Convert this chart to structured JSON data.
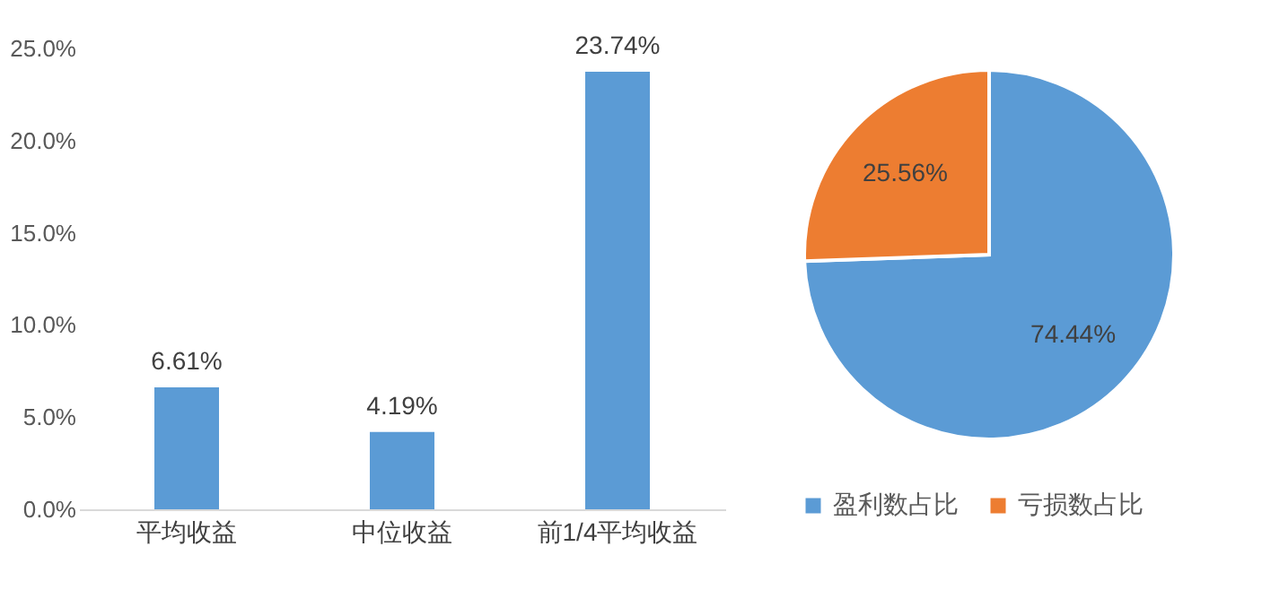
{
  "chart_data": [
    {
      "type": "bar",
      "categories": [
        "平均收益",
        "中位收益",
        "前1/4平均收益"
      ],
      "values": [
        6.61,
        4.19,
        23.74
      ],
      "color": "#5b9bd5",
      "value_labels": [
        "6.61%",
        "4.19%",
        "23.74%"
      ],
      "ylim": [
        0,
        25
      ],
      "yticks": [
        {
          "value": 0,
          "label": "0.0%"
        },
        {
          "value": 5,
          "label": "5.0%"
        },
        {
          "value": 10,
          "label": "10.0%"
        },
        {
          "value": 15,
          "label": "15.0%"
        },
        {
          "value": 20,
          "label": "20.0%"
        },
        {
          "value": 25,
          "label": "25.0%"
        }
      ],
      "grid": false
    },
    {
      "type": "pie",
      "categories": [
        "盈利数占比",
        "亏损数占比"
      ],
      "values": [
        74.44,
        25.56
      ],
      "colors": [
        "#5b9bd5",
        "#ed7d31"
      ],
      "value_labels": [
        "74.44%",
        "25.56%"
      ],
      "legend": "bottom"
    }
  ]
}
